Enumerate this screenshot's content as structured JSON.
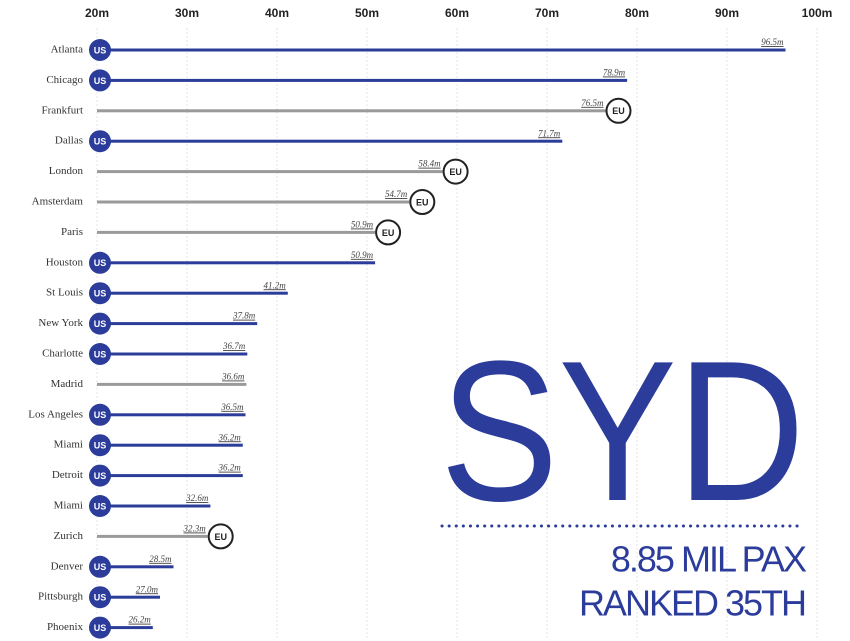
{
  "chart_data": {
    "type": "bar",
    "orientation": "horizontal",
    "categories": [
      "Atlanta",
      "Chicago",
      "Frankfurt",
      "Dallas",
      "London",
      "Amsterdam",
      "Paris",
      "Houston",
      "St Louis",
      "New York",
      "Charlotte",
      "Madrid",
      "Los Angeles",
      "Miami",
      "Detroit",
      "Miami",
      "Zurich",
      "Denver",
      "Pittsburgh",
      "Phoenix"
    ],
    "values": [
      96.5,
      78.9,
      76.5,
      71.7,
      58.4,
      54.7,
      50.9,
      50.9,
      41.2,
      37.8,
      36.7,
      36.6,
      36.5,
      36.2,
      36.2,
      32.6,
      32.3,
      28.5,
      27.0,
      26.2
    ],
    "value_labels": [
      "96.5m",
      "78.9m",
      "76.5m",
      "71.7m",
      "58.4m",
      "54.7m",
      "50.9m",
      "50.9m",
      "41.2m",
      "37.8m",
      "36.7m",
      "36.6m",
      "36.5m",
      "36.2m",
      "36.2m",
      "32.6m",
      "32.3m",
      "28.5m",
      "27.0m",
      "26.2m"
    ],
    "regions": [
      "US",
      "US",
      "EU",
      "US",
      "EU",
      "EU",
      "EU",
      "US",
      "US",
      "US",
      "US",
      null,
      "US",
      "US",
      "US",
      "US",
      "EU",
      "US",
      "US",
      "US"
    ],
    "region_colors": {
      "US": "#2b3c9b",
      "EU": "#9a9a9a"
    },
    "other_color": "#9a9a9a",
    "xlim": [
      20,
      100
    ],
    "xticks": [
      {
        "value": 20,
        "label": "20m"
      },
      {
        "value": 30,
        "label": "30m"
      },
      {
        "value": 40,
        "label": "40m"
      },
      {
        "value": 50,
        "label": "50m"
      },
      {
        "value": 60,
        "label": "60m"
      },
      {
        "value": 70,
        "label": "70m"
      },
      {
        "value": 80,
        "label": "80m"
      },
      {
        "value": 90,
        "label": "90m"
      },
      {
        "value": 100,
        "label": "100m"
      }
    ],
    "grid": true,
    "annotations": [
      "SYD",
      "8.85 MIL PAX",
      "RANKED 35TH"
    ]
  }
}
